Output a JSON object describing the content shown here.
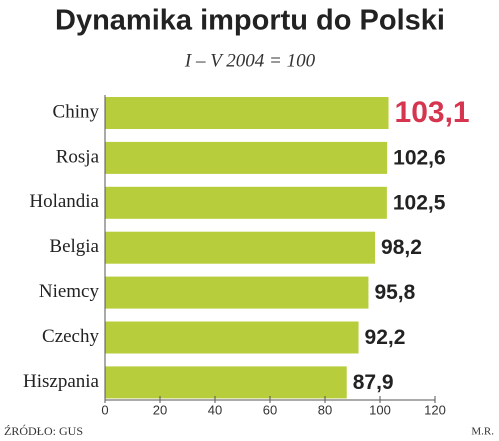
{
  "chart_data": {
    "type": "hbar",
    "title": "Dynamika importu do Polski",
    "subtitle": "I – V 2004 = 100",
    "categories": [
      "Chiny",
      "Rosja",
      "Holandia",
      "Belgia",
      "Niemcy",
      "Czechy",
      "Hiszpania"
    ],
    "values": [
      103.1,
      102.6,
      102.5,
      98.2,
      95.8,
      92.2,
      87.9
    ],
    "value_labels": [
      "103,1",
      "102,6",
      "102,5",
      "98,2",
      "95,8",
      "92,2",
      "87,9"
    ],
    "value_label_colors": [
      "#d6354f",
      "#222222",
      "#222222",
      "#222222",
      "#222222",
      "#222222",
      "#222222"
    ],
    "color": "#b8cd3c",
    "xlim": [
      0,
      120
    ],
    "xticks": [
      0,
      20,
      40,
      60,
      80,
      100,
      120
    ],
    "source": "ŹRÓDŁO: GUS",
    "credit": "M.R."
  }
}
